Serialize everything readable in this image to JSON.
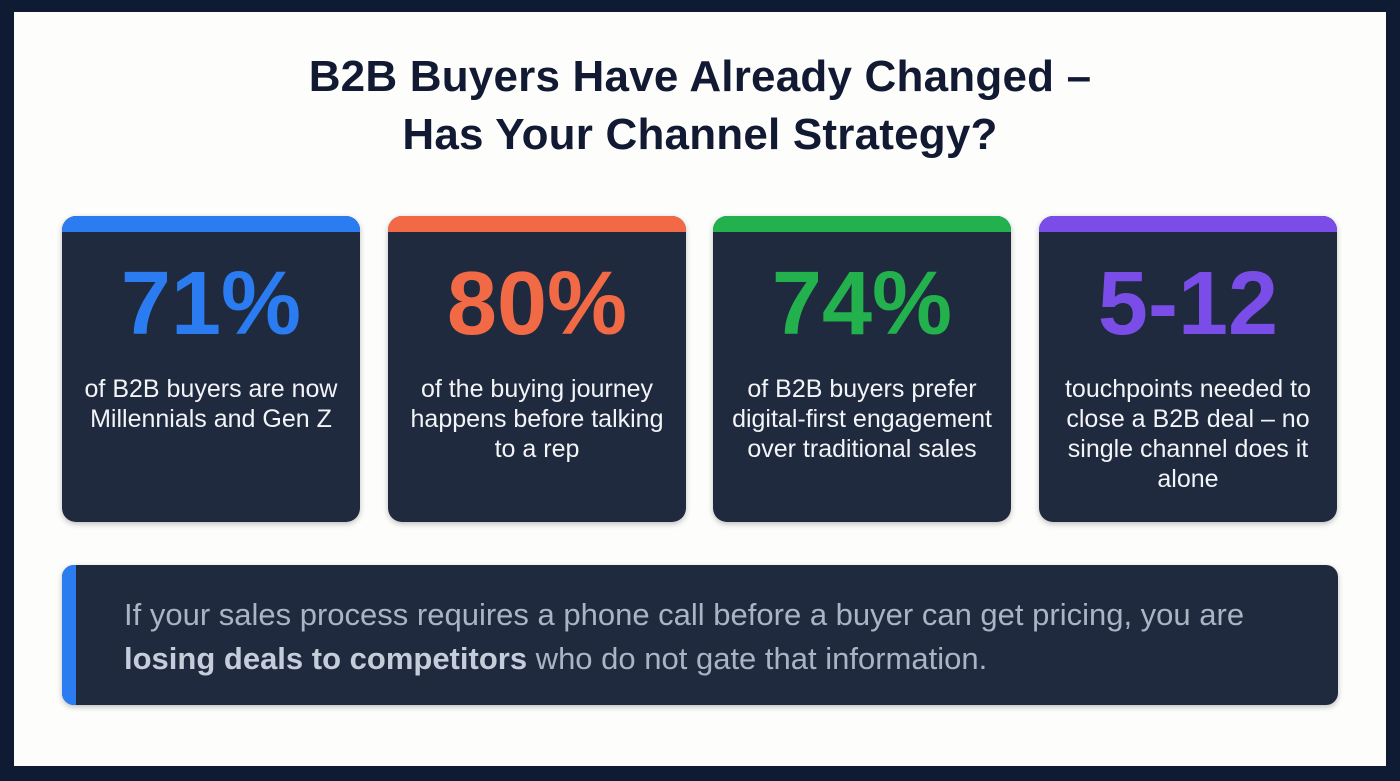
{
  "title": {
    "line1": "B2B Buyers Have Already Changed –",
    "line2": "Has Your Channel Strategy?"
  },
  "colors": {
    "blue": "#2b7cf0",
    "orange": "#f26a45",
    "green": "#22b14c",
    "purple": "#7b4de8",
    "card_bg": "#1f2a3e",
    "frame": "#0f1a33"
  },
  "cards": [
    {
      "value": "71%",
      "description": "of B2B buyers are now Millennials and Gen Z",
      "color": "#2b7cf0"
    },
    {
      "value": "80%",
      "description": "of the buying journey happens before talking to a rep",
      "color": "#f26a45"
    },
    {
      "value": "74%",
      "description": "of B2B buyers prefer digital-first engagement over traditional sales",
      "color": "#22b14c"
    },
    {
      "value": "5-12",
      "description": "touchpoints needed to close a B2B deal – no single channel does it alone",
      "color": "#7b4de8"
    }
  ],
  "callout": {
    "part1": "If your sales process requires a phone call before a buyer can get pricing, you are ",
    "emphasis": "losing deals to competitors",
    "part2": " who do not gate that information."
  }
}
